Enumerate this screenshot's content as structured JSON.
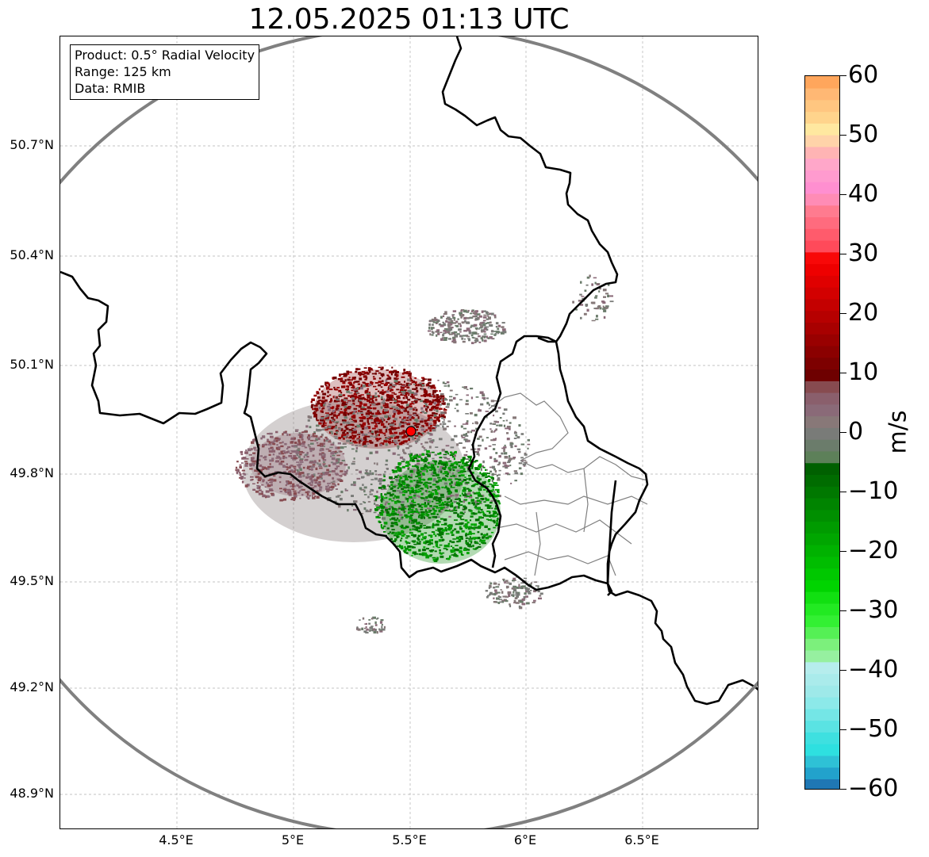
{
  "title": "12.05.2025 01:13 UTC",
  "info_box": {
    "product": "Product: 0.5° Radial Velocity",
    "range": "Range: 125 km",
    "data": "Data: RMIB"
  },
  "lat_labels": [
    "50.7°N",
    "50.4°N",
    "50.1°N",
    "49.8°N",
    "49.5°N",
    "49.2°N",
    "48.9°N"
  ],
  "lon_labels": [
    "4.5°E",
    "5°E",
    "5.5°E",
    "6°E",
    "6.5°E"
  ],
  "radar_site": {
    "lat": 49.914,
    "lon": 5.506,
    "range_km": 125
  },
  "colorbar": {
    "unit": "m/s",
    "min": -60,
    "max": 60,
    "tick_labels": [
      "60",
      "50",
      "40",
      "30",
      "20",
      "10",
      "0",
      "−10",
      "−20",
      "−30",
      "−40",
      "−50",
      "−60"
    ],
    "colors": [
      "#1f77b4",
      "#22a2cc",
      "#2ec1d6",
      "#2ee0e0",
      "#3ee0e0",
      "#5ae3e3",
      "#74e6e6",
      "#8ce9e9",
      "#9ee9e9",
      "#aaebeb",
      "#b6eded",
      "#96f0a0",
      "#7cf07c",
      "#55f055",
      "#33f033",
      "#22ea22",
      "#11e011",
      "#00d400",
      "#00c800",
      "#00bd00",
      "#00b200",
      "#00a600",
      "#009b00",
      "#008f00",
      "#008400",
      "#007800",
      "#006c00",
      "#006000",
      "#5d8059",
      "#6b7c6b",
      "#797b78",
      "#887878",
      "#8a6a78",
      "#8a5f6c",
      "#874b50",
      "#6e0000",
      "#7d0000",
      "#8b0000",
      "#990000",
      "#a80000",
      "#b60000",
      "#c40000",
      "#d30000",
      "#e00000",
      "#ee0000",
      "#f80808",
      "#ff4a5a",
      "#ff5b6c",
      "#ff6b7e",
      "#ff7b8f",
      "#ff8cb5",
      "#ff8fd0",
      "#ff9bcf",
      "#ffa7c9",
      "#ffb4b4",
      "#ffd3a9",
      "#ffe8a0",
      "#ffd48c",
      "#ffc680",
      "#ffb874",
      "#ffa65c"
    ]
  },
  "colors": {
    "range_ring": "#808080",
    "country_border": "#000000",
    "province_border": "#808080",
    "radar_marker": "#ff0000",
    "gridline": "#b0b0b0"
  }
}
